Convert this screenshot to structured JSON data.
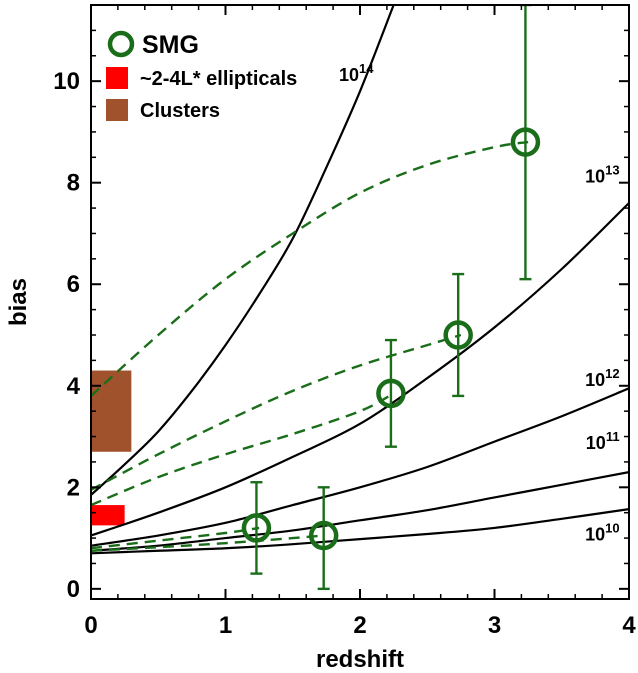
{
  "chart_data": {
    "type": "line",
    "xlabel": "redshift",
    "ylabel": "bias",
    "xlim": [
      0,
      4
    ],
    "ylim": [
      -0.2,
      11.5
    ],
    "xticks": [
      "0",
      "1",
      "2",
      "3",
      "4"
    ],
    "yticks": [
      "0",
      "2",
      "4",
      "6",
      "8",
      "10"
    ],
    "grid": false,
    "legend_placement": "top-left",
    "legend": [
      {
        "label": "SMG",
        "marker": "circle",
        "color": "#1a6e1a"
      },
      {
        "label": "~2-4L* ellipticals",
        "marker": "square",
        "color": "#ff0000"
      },
      {
        "label": "Clusters",
        "marker": "square",
        "color": "#a0522d"
      }
    ],
    "halo_curves": [
      {
        "label_base": "10",
        "label_exp": "14",
        "color": "#000000",
        "x": [
          0,
          0.25,
          0.5,
          0.75,
          1.0,
          1.25,
          1.5,
          1.75,
          2.0,
          2.25
        ],
        "y": [
          1.85,
          2.45,
          3.1,
          3.9,
          4.8,
          5.8,
          6.9,
          8.3,
          9.8,
          11.5
        ]
      },
      {
        "label_base": "10",
        "label_exp": "13",
        "color": "#000000",
        "x": [
          0,
          0.5,
          1.0,
          1.5,
          2.0,
          2.5,
          3.0,
          3.5,
          4.0
        ],
        "y": [
          1.05,
          1.5,
          2.0,
          2.6,
          3.25,
          4.15,
          5.15,
          6.3,
          7.6
        ]
      },
      {
        "label_base": "10",
        "label_exp": "12",
        "color": "#000000",
        "x": [
          0,
          0.5,
          1.0,
          1.5,
          2.0,
          2.5,
          3.0,
          3.5,
          4.0
        ],
        "y": [
          0.85,
          1.05,
          1.3,
          1.65,
          2.0,
          2.4,
          2.9,
          3.4,
          3.95
        ]
      },
      {
        "label_base": "10",
        "label_exp": "11",
        "color": "#000000",
        "x": [
          0,
          0.5,
          1.0,
          1.5,
          2.0,
          2.5,
          3.0,
          3.5,
          4.0
        ],
        "y": [
          0.75,
          0.85,
          1.0,
          1.15,
          1.35,
          1.55,
          1.8,
          2.05,
          2.3
        ]
      },
      {
        "label_base": "10",
        "label_exp": "10",
        "color": "#000000",
        "x": [
          0,
          0.5,
          1.0,
          1.5,
          2.0,
          2.5,
          3.0,
          3.5,
          4.0
        ],
        "y": [
          0.7,
          0.75,
          0.8,
          0.88,
          0.98,
          1.08,
          1.2,
          1.38,
          1.57
        ]
      }
    ],
    "evolution_tracks": [
      {
        "color": "#1a6e1a",
        "style": "dashed",
        "x": [
          0,
          0.5,
          1.0,
          1.5,
          2.0,
          2.5,
          3.0,
          3.25
        ],
        "y": [
          3.8,
          5.0,
          6.1,
          7.0,
          7.8,
          8.35,
          8.7,
          8.8
        ]
      },
      {
        "color": "#1a6e1a",
        "style": "dashed",
        "x": [
          0,
          0.5,
          1.0,
          1.5,
          2.0,
          2.5,
          2.75
        ],
        "y": [
          1.95,
          2.65,
          3.3,
          3.9,
          4.4,
          4.8,
          5.0
        ]
      },
      {
        "color": "#1a6e1a",
        "style": "dashed",
        "x": [
          0,
          0.5,
          1.0,
          1.5,
          2.0,
          2.25
        ],
        "y": [
          1.65,
          2.2,
          2.65,
          3.05,
          3.5,
          3.85
        ]
      },
      {
        "color": "#1a6e1a",
        "style": "dashed",
        "x": [
          0,
          0.5,
          1.0,
          1.25
        ],
        "y": [
          0.8,
          0.95,
          1.1,
          1.2
        ]
      },
      {
        "color": "#1a6e1a",
        "style": "dashed",
        "x": [
          0,
          0.5,
          1.0,
          1.5,
          1.73
        ],
        "y": [
          0.75,
          0.82,
          0.9,
          1.0,
          1.05
        ]
      }
    ],
    "smg_points": [
      {
        "x": 1.23,
        "y": 1.2,
        "y_low": 0.3,
        "y_high": 2.1
      },
      {
        "x": 1.73,
        "y": 1.05,
        "y_low": 0.0,
        "y_high": 2.0
      },
      {
        "x": 2.23,
        "y": 3.85,
        "y_low": 2.8,
        "y_high": 4.9
      },
      {
        "x": 2.73,
        "y": 5.0,
        "y_low": 3.8,
        "y_high": 6.2
      },
      {
        "x": 3.23,
        "y": 8.8,
        "y_low": 6.1,
        "y_high": 11.5
      }
    ],
    "ellipticals_box": {
      "x": [
        0,
        0.25
      ],
      "y": [
        1.25,
        1.65
      ],
      "color": "#ff0000"
    },
    "clusters_box": {
      "x": [
        0,
        0.3
      ],
      "y": [
        2.7,
        4.3
      ],
      "color": "#a0522d"
    }
  }
}
